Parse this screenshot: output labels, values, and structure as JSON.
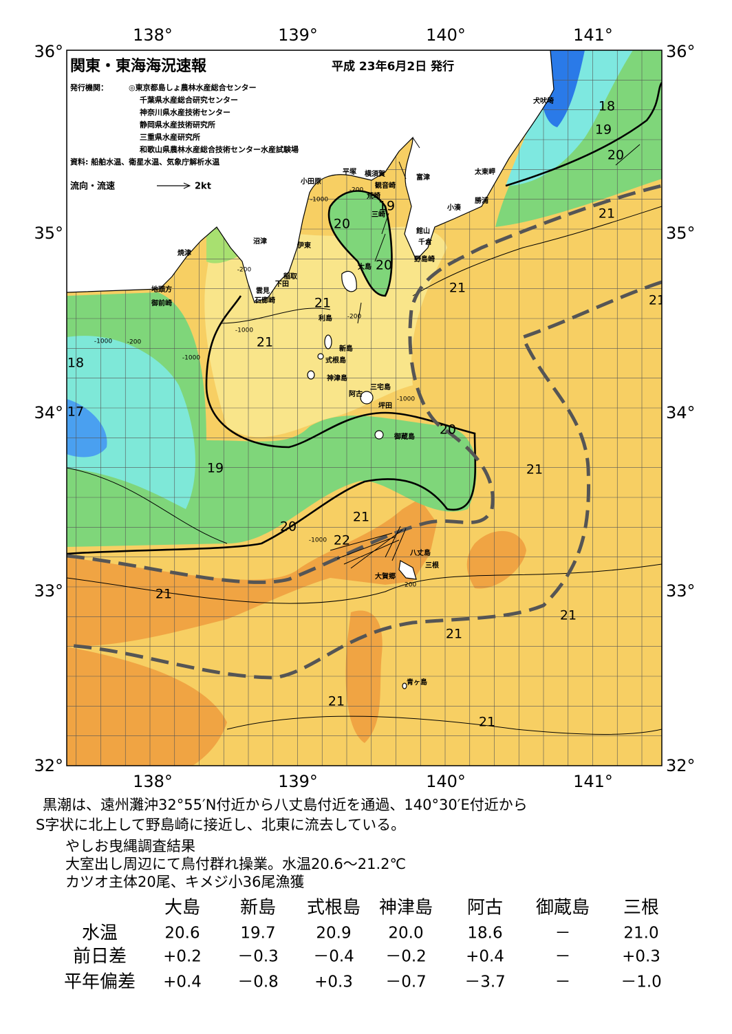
{
  "header": {
    "title": "関東・東海海況速報",
    "date": "平成 23年6月2日 発行",
    "issuer_label": "発行機関：",
    "issuers": [
      "◎東京都島しょ農林水産総合センター",
      "千葉県水産総合研究センター",
      "神奈川県水産技術センター",
      "静岡県水産技術研究所",
      "三重県水産研究所",
      "和歌山県農林水産総合技術センター水産試験場"
    ],
    "sources": "資料: 船舶水温、衛星水温、気象庁解析水温",
    "legend_label": "流向・流速",
    "legend_scale": "2kt"
  },
  "map": {
    "lon_labels": [
      "138°",
      "139°",
      "140°",
      "141°"
    ],
    "lat_labels": [
      "36°",
      "35°",
      "34°",
      "33°",
      "32°"
    ],
    "places": [
      "犬吠埼",
      "太東岬",
      "勝浦",
      "小湊",
      "富津",
      "観音崎",
      "横須賀",
      "平塚",
      "小田原",
      "荒崎",
      "三崎",
      "館山",
      "千倉",
      "野島崎",
      "沼津",
      "伊東",
      "焼津",
      "稲取",
      "下田",
      "雲見",
      "石廊崎",
      "地頭方",
      "御前崎",
      "大島",
      "利島",
      "新島",
      "式根島",
      "神津島",
      "三宅島",
      "阿古",
      "坪田",
      "御蔵島",
      "八丈島",
      "三根",
      "大賀郷",
      "青ヶ島"
    ],
    "temperature_labels": [
      "18",
      "19",
      "20",
      "21",
      "19",
      "20",
      "20",
      "21",
      "21",
      "21",
      "18",
      "17",
      "20",
      "21",
      "19",
      "21",
      "20",
      "22",
      "21",
      "21",
      "21",
      "21",
      "21",
      "21"
    ],
    "depth_labels": [
      "-200",
      "-1000",
      "-200",
      "-1000",
      "-200",
      "-1000",
      "-1000",
      "-200",
      "-1000",
      "-1000",
      "-200"
    ]
  },
  "summary": [
    "黒潮は、遠州灘沖32°55′N付近から八丈島付近を通過、140°30′E付近から",
    "S字状に北上して野島崎に接近し、北東に流去している。"
  ],
  "notes": [
    "やしお曳縄調査結果",
    "大室出し周辺にて鳥付群れ操業。水温20.6～21.2℃",
    "カツオ主体20尾、キメジ小36尾漁獲"
  ],
  "table": {
    "columns": [
      "大島",
      "新島",
      "式根島",
      "神津島",
      "阿古",
      "御蔵島",
      "三根"
    ],
    "rows": [
      {
        "label": "水温",
        "values": [
          "20.6",
          "19.7",
          "20.9",
          "20.0",
          "18.6",
          "－",
          "21.0"
        ]
      },
      {
        "label": "前日差",
        "values": [
          "+0.2",
          "－0.3",
          "－0.4",
          "－0.2",
          "+0.4",
          "－",
          "+0.3"
        ]
      },
      {
        "label": "平年偏差",
        "values": [
          "+0.4",
          "－0.8",
          "+0.3",
          "－0.7",
          "－3.7",
          "－",
          "－1.0"
        ]
      }
    ]
  }
}
